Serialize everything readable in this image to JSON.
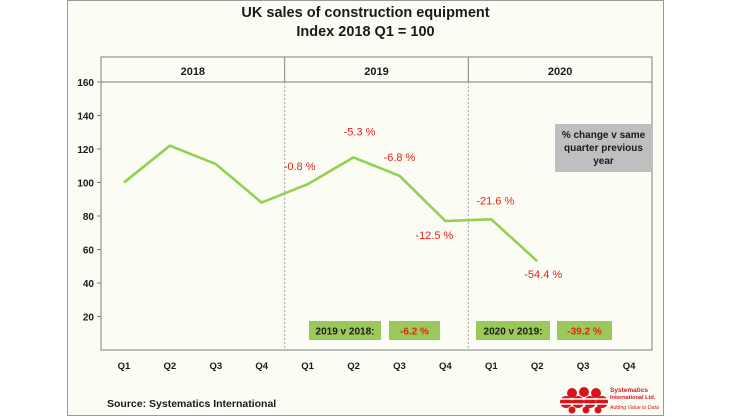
{
  "chart_data": {
    "type": "line",
    "title": "UK sales of construction equipment",
    "subtitle": "Index 2018 Q1 = 100",
    "years": [
      "2018",
      "2019",
      "2020"
    ],
    "categories": [
      "Q1",
      "Q2",
      "Q3",
      "Q4",
      "Q1",
      "Q2",
      "Q3",
      "Q4",
      "Q1",
      "Q2",
      "Q3",
      "Q4"
    ],
    "values": [
      100,
      122,
      111,
      88,
      99,
      115,
      104,
      77,
      78,
      53,
      null,
      null
    ],
    "ylim": [
      0,
      160
    ],
    "yticks": [
      "20",
      "40",
      "60",
      "80",
      "100",
      "120",
      "140",
      "160"
    ],
    "data_labels": [
      {
        "index": 4,
        "text": "-0.8 %"
      },
      {
        "index": 5,
        "text": "-5.3 %"
      },
      {
        "index": 6,
        "text": "-6.8 %"
      },
      {
        "index": 7,
        "text": "-12.5 %"
      },
      {
        "index": 8,
        "text": "-21.6 %"
      },
      {
        "index": 9,
        "text": "-54.4 %"
      }
    ],
    "legend_box": "% change v same quarter previous year",
    "annotations": [
      {
        "label": "2019 v 2018:",
        "value": "-6.2 %"
      },
      {
        "label": "2020 v 2019:",
        "value": "-39.2 %"
      }
    ],
    "source": "Source: Systematics International"
  },
  "logo": {
    "name": "Systematics International Ltd.",
    "tagline": "Adding Value to Data"
  },
  "colors": {
    "line": "#92d050",
    "label_red": "#e8201a",
    "box_gray": "#bfbfbf",
    "box_green": "#9bc85b"
  }
}
